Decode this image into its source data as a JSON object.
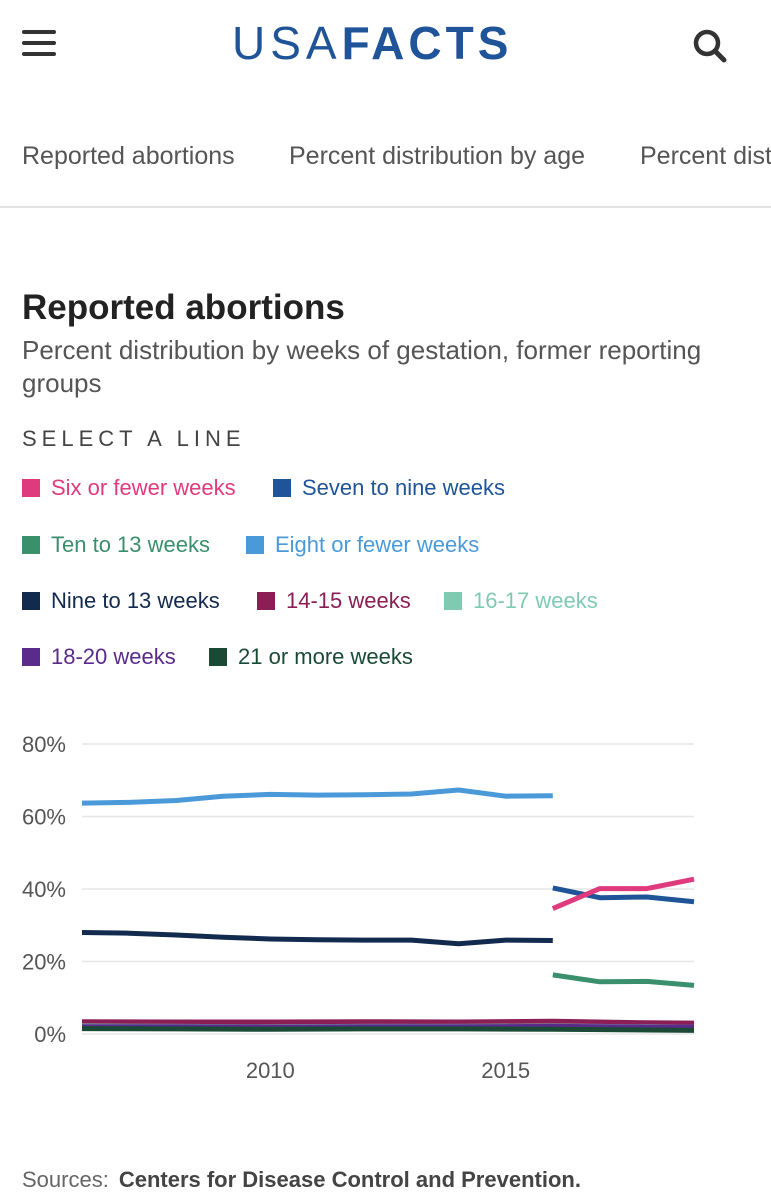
{
  "header": {
    "logo_light": "USA",
    "logo_bold": "FACTS"
  },
  "tabs": [
    {
      "label": "Reported abortions"
    },
    {
      "label": "Percent distribution by age"
    },
    {
      "label": "Percent dist"
    }
  ],
  "select_label": "SELECT A LINE",
  "legend": [
    {
      "label": "Six or fewer weeks",
      "color": "#e03a7e"
    },
    {
      "label": "Seven to nine weeks",
      "color": "#1f5499"
    },
    {
      "label": "Ten to 13 weeks",
      "color": "#3a8f6c"
    },
    {
      "label": "Eight or fewer weeks",
      "color": "#4a9ad9"
    },
    {
      "label": "Nine to 13 weeks",
      "color": "#132a4f"
    },
    {
      "label": "14-15 weeks",
      "color": "#8a1e55"
    },
    {
      "label": "16-17 weeks",
      "color": "#7fcab0"
    },
    {
      "label": "18-20 weeks",
      "color": "#5a2b8a"
    },
    {
      "label": "21 or more weeks",
      "color": "#1a4a36"
    }
  ],
  "chart_data": {
    "type": "line",
    "title": "Reported abortions",
    "subtitle": "Percent distribution by weeks of gestation, former reporting groups",
    "xlim": [
      2006,
      2019
    ],
    "ylim": [
      0,
      80
    ],
    "x_ticks": [
      {
        "value": 2010,
        "label": "2010"
      },
      {
        "value": 2015,
        "label": "2015"
      }
    ],
    "y_ticks": [
      {
        "value": 0,
        "label": "0%"
      },
      {
        "value": 20,
        "label": "20%"
      },
      {
        "value": 40,
        "label": "40%"
      },
      {
        "value": 60,
        "label": "60%"
      },
      {
        "value": 80,
        "label": "80%"
      }
    ],
    "grid": true,
    "series": [
      {
        "name": "Eight or fewer weeks",
        "color": "#4a9ad9",
        "x": [
          2006,
          2007,
          2008,
          2009,
          2010,
          2011,
          2012,
          2013,
          2014,
          2015,
          2016
        ],
        "values": [
          63.7,
          63.9,
          64.4,
          65.6,
          66.1,
          65.9,
          66.0,
          66.2,
          67.3,
          65.6,
          65.7
        ]
      },
      {
        "name": "Nine to 13 weeks",
        "color": "#132a4f",
        "x": [
          2006,
          2007,
          2008,
          2009,
          2010,
          2011,
          2012,
          2013,
          2014,
          2015,
          2016
        ],
        "values": [
          28.0,
          27.8,
          27.3,
          26.7,
          26.2,
          26.0,
          25.9,
          25.9,
          24.9,
          25.9,
          25.8
        ]
      },
      {
        "name": "Seven to nine weeks",
        "color": "#1f5499",
        "x": [
          2016,
          2017,
          2018,
          2019
        ],
        "values": [
          40.3,
          37.6,
          37.8,
          36.5
        ]
      },
      {
        "name": "Six or fewer weeks",
        "color": "#e03a7e",
        "x": [
          2016,
          2017,
          2018,
          2019
        ],
        "values": [
          34.6,
          40.1,
          40.1,
          42.7
        ]
      },
      {
        "name": "Ten to 13 weeks",
        "color": "#3a8f6c",
        "x": [
          2016,
          2017,
          2018,
          2019
        ],
        "values": [
          16.3,
          14.4,
          14.5,
          13.4
        ]
      },
      {
        "name": "14-15 weeks",
        "color": "#8a1e55",
        "x": [
          2006,
          2008,
          2010,
          2012,
          2014,
          2016,
          2018,
          2019
        ],
        "values": [
          3.4,
          3.3,
          3.3,
          3.4,
          3.3,
          3.5,
          3.1,
          3.0
        ]
      },
      {
        "name": "16-17 weeks",
        "color": "#7fcab0",
        "x": [
          2006,
          2008,
          2010,
          2012,
          2014,
          2016,
          2018,
          2019
        ],
        "values": [
          2.2,
          2.1,
          2.0,
          2.1,
          2.1,
          2.2,
          2.0,
          1.9
        ]
      },
      {
        "name": "18-20 weeks",
        "color": "#5a2b8a",
        "x": [
          2006,
          2008,
          2010,
          2012,
          2014,
          2016,
          2018,
          2019
        ],
        "values": [
          2.0,
          2.0,
          1.9,
          2.0,
          2.0,
          2.1,
          1.9,
          1.9
        ]
      },
      {
        "name": "21 or more weeks",
        "color": "#1a4a36",
        "x": [
          2006,
          2008,
          2010,
          2012,
          2014,
          2016,
          2018,
          2019
        ],
        "values": [
          1.5,
          1.4,
          1.3,
          1.4,
          1.4,
          1.3,
          1.1,
          1.0
        ]
      }
    ]
  },
  "sources": {
    "label": "Sources:",
    "value": "Centers for Disease Control and Prevention."
  }
}
